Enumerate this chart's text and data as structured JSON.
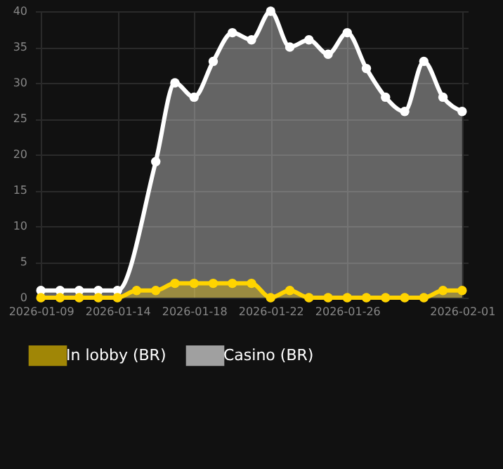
{
  "chart_data": {
    "type": "area",
    "categories": [
      "2026-01-09",
      null,
      null,
      null,
      "2026-01-14",
      null,
      null,
      null,
      "2026-01-18",
      null,
      null,
      null,
      "2026-01-22",
      null,
      null,
      null,
      "2026-01-26",
      null,
      null,
      null,
      null,
      null,
      "2026-02-01"
    ],
    "series": [
      {
        "name": "In lobby (BR)",
        "color": "#ffd400",
        "values": [
          0,
          0,
          0,
          0,
          0,
          1,
          1,
          2,
          2,
          2,
          2,
          2,
          0,
          1,
          0,
          0,
          0,
          0,
          0,
          0,
          0,
          1,
          1
        ]
      },
      {
        "name": "Casino (BR)",
        "color": "#ffffff",
        "values": [
          1,
          1,
          1,
          1,
          1,
          null,
          19,
          30,
          28,
          33,
          37,
          36,
          40,
          35,
          36,
          34,
          37,
          32,
          28,
          26,
          33,
          28,
          26
        ]
      }
    ],
    "ylim": [
      0,
      40
    ],
    "yticks": [
      0,
      5,
      10,
      15,
      20,
      25,
      30,
      35,
      40
    ],
    "grid": true,
    "legend": "bottom",
    "marker": "circle",
    "line_style": "solid"
  }
}
